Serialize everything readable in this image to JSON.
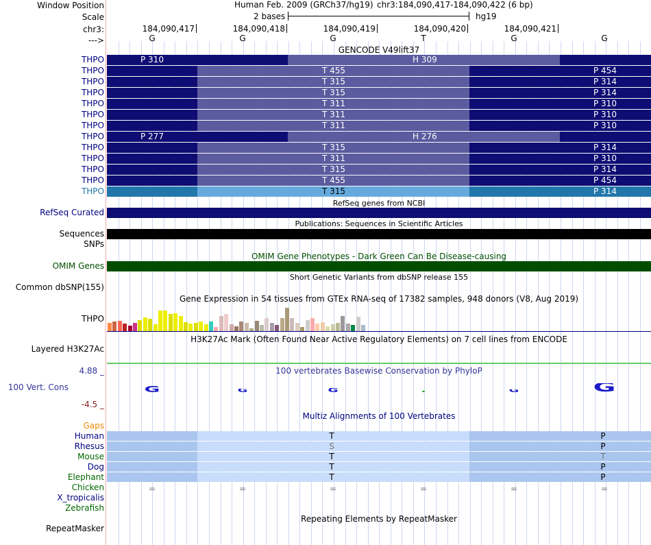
{
  "header": {
    "window_position_label": "Window Position",
    "assembly_title": "Human Feb. 2009 (GRCh37/hg19)",
    "position": "chr3:184,090,417-184,090,422 (6 bp)",
    "scale_label": "Scale",
    "scale_text": "2 bases",
    "scale_db": "hg19",
    "chrom_label": "chr3:",
    "strand_label": "--->"
  },
  "ruler": {
    "positions": [
      "184,090,417",
      "184,090,418",
      "184,090,419",
      "184,090,420",
      "184,090,421"
    ],
    "bases": [
      "G",
      "G",
      "G",
      "T",
      "G",
      "G"
    ]
  },
  "gencode": {
    "title": "GENCODE V49lift37",
    "rows": [
      {
        "label": "THPO",
        "seg1": "P 310",
        "seg2": "H 309",
        "seg3": ""
      },
      {
        "label": "THPO",
        "seg1": "",
        "seg2": "T 455",
        "seg3": "P 454"
      },
      {
        "label": "THPO",
        "seg1": "",
        "seg2": "T 315",
        "seg3": "P 314"
      },
      {
        "label": "THPO",
        "seg1": "",
        "seg2": "T 315",
        "seg3": "P 314"
      },
      {
        "label": "THPO",
        "seg1": "",
        "seg2": "T 311",
        "seg3": "P 310"
      },
      {
        "label": "THPO",
        "seg1": "",
        "seg2": "T 311",
        "seg3": "P 310"
      },
      {
        "label": "THPO",
        "seg1": "",
        "seg2": "T 311",
        "seg3": "P 310"
      },
      {
        "label": "THPO",
        "seg1": "P 277",
        "seg2": "H 276",
        "seg3": ""
      },
      {
        "label": "THPO",
        "seg1": "",
        "seg2": "T 315",
        "seg3": "P 314"
      },
      {
        "label": "THPO",
        "seg1": "",
        "seg2": "T 311",
        "seg3": "P 310"
      },
      {
        "label": "THPO",
        "seg1": "",
        "seg2": "T 315",
        "seg3": "P 314"
      },
      {
        "label": "THPO",
        "seg1": "",
        "seg2": "T 455",
        "seg3": "P 454"
      },
      {
        "label": "THPO",
        "seg1": "",
        "seg2": "T 315",
        "seg3": "P 314"
      }
    ]
  },
  "refseq": {
    "title": "RefSeq genes from NCBI",
    "label": "RefSeq Curated"
  },
  "publications": {
    "title": "Publications: Sequences in Scientific Articles",
    "label": "Sequences"
  },
  "snps_label": "SNPs",
  "omim": {
    "title": "OMIM Gene Phenotypes - Dark Green Can Be Disease-causing",
    "label": "OMIM Genes"
  },
  "dbsnp": {
    "title": "Short Genetic Variants from dbSNP release 155",
    "label": "Common dbSNP(155)"
  },
  "gtex": {
    "title": "Gene Expression in 54 tissues from GTEx RNA-seq of 17382 samples, 948 donors (V8, Aug 2019)",
    "label": "THPO",
    "bars": [
      {
        "v": 0.3,
        "c": "#ff8844"
      },
      {
        "v": 0.35,
        "c": "#cc6644"
      },
      {
        "v": 0.38,
        "c": "#ff6655"
      },
      {
        "v": 0.28,
        "c": "#bb2222"
      },
      {
        "v": 0.2,
        "c": "#aa0033"
      },
      {
        "v": 0.3,
        "c": "#cc3388"
      },
      {
        "v": 0.4,
        "c": "#dddd00"
      },
      {
        "v": 0.5,
        "c": "#eeee00"
      },
      {
        "v": 0.45,
        "c": "#dddd00"
      },
      {
        "v": 0.25,
        "c": "#eeee00"
      },
      {
        "v": 0.75,
        "c": "#eeee00"
      },
      {
        "v": 0.75,
        "c": "#eeee00"
      },
      {
        "v": 0.62,
        "c": "#dddd00"
      },
      {
        "v": 0.65,
        "c": "#eeee00"
      },
      {
        "v": 0.55,
        "c": "#eeee00"
      },
      {
        "v": 0.32,
        "c": "#dddd00"
      },
      {
        "v": 0.28,
        "c": "#eeee00"
      },
      {
        "v": 0.3,
        "c": "#dddd00"
      },
      {
        "v": 0.34,
        "c": "#eeee00"
      },
      {
        "v": 0.25,
        "c": "#eeee00"
      },
      {
        "v": 0.36,
        "c": "#33ccbb"
      },
      {
        "v": 0.15,
        "c": "#ffaaaa"
      },
      {
        "v": 0.55,
        "c": "#ddbbbb"
      },
      {
        "v": 0.62,
        "c": "#eecccc"
      },
      {
        "v": 0.25,
        "c": "#ccaaaa"
      },
      {
        "v": 0.18,
        "c": "#997766"
      },
      {
        "v": 0.35,
        "c": "#aa8877"
      },
      {
        "v": 0.3,
        "c": "#ccbbaa"
      },
      {
        "v": 0.1,
        "c": "#aaaa88"
      },
      {
        "v": 0.38,
        "c": "#998877"
      },
      {
        "v": 0.22,
        "c": "#bbbbaa"
      },
      {
        "v": 0.48,
        "c": "#ddcccc"
      },
      {
        "v": 0.3,
        "c": "#aa99aa"
      },
      {
        "v": 0.22,
        "c": "#885577"
      },
      {
        "v": 0.48,
        "c": "#bbaa88"
      },
      {
        "v": 0.85,
        "c": "#aa9977"
      },
      {
        "v": 0.48,
        "c": "#ccbbbb"
      },
      {
        "v": 0.3,
        "c": "#ddccbb"
      },
      {
        "v": 0.15,
        "c": "#aa9966"
      },
      {
        "v": 0.4,
        "c": "#cccccc"
      },
      {
        "v": 0.48,
        "c": "#ffaaaa"
      },
      {
        "v": 0.28,
        "c": "#ffccaa"
      },
      {
        "v": 0.32,
        "c": "#eeccaa"
      },
      {
        "v": 0.18,
        "c": "#ddddaa"
      },
      {
        "v": 0.25,
        "c": "#ccccaa"
      },
      {
        "v": 0.3,
        "c": "#bbbb99"
      },
      {
        "v": 0.55,
        "c": "#999999"
      },
      {
        "v": 0.28,
        "c": "#aaaaaa"
      },
      {
        "v": 0.22,
        "c": "#008844"
      },
      {
        "v": 0.52,
        "c": "#cccccc"
      },
      {
        "v": 0.22,
        "c": "#aabbcc"
      }
    ]
  },
  "h3k27ac": {
    "title": "H3K27Ac Mark (Often Found Near Active Regulatory Elements) on 7 cell lines from ENCODE",
    "label": "Layered H3K27Ac"
  },
  "conservation": {
    "title": "100 vertebrates Basewise Conservation by PhyloP",
    "label": "100 Vert. Cons",
    "max": "4.88 _",
    "min": "-4.5 _",
    "scores": [
      1.5,
      0.8,
      1.0,
      0.1,
      0.6,
      2.2
    ]
  },
  "multiz": {
    "title": "Multiz Alignments of 100 Vertebrates",
    "gaps_label": "Gaps",
    "species": [
      {
        "name": "Human",
        "mid": "T",
        "end": "P",
        "color": "#000080"
      },
      {
        "name": "Rhesus",
        "mid": "S",
        "end": "P",
        "color": "#000080"
      },
      {
        "name": "Mouse",
        "mid": "T",
        "end": "T",
        "color": "#006600"
      },
      {
        "name": "Dog",
        "mid": "T",
        "end": "P",
        "color": "#000080"
      },
      {
        "name": "Elephant",
        "mid": "T",
        "end": "P",
        "color": "#006600"
      },
      {
        "name": "Chicken",
        "mid": "",
        "end": "",
        "color": "#006600"
      },
      {
        "name": "X_tropicalis",
        "mid": "",
        "end": "",
        "color": "#000080"
      },
      {
        "name": "Zebrafish",
        "mid": "",
        "end": "",
        "color": "#006600"
      }
    ],
    "chicken_marks": [
      "=",
      "=",
      "=",
      "=",
      "=",
      "="
    ]
  },
  "repeatmasker": {
    "title": "Repeating Elements by RepeatMasker",
    "label": "RepeatMasker"
  },
  "colors": {
    "gene_dark": "#0d0d73",
    "gene_mid": "#5b5b9f",
    "gene_last": "#2277aa",
    "gene_last_mid": "#66aadd",
    "omim_green": "#004d00",
    "maf_dark": "#aac6ee",
    "maf_light": "#c8dcfb",
    "guide": "#ccd8ee"
  }
}
